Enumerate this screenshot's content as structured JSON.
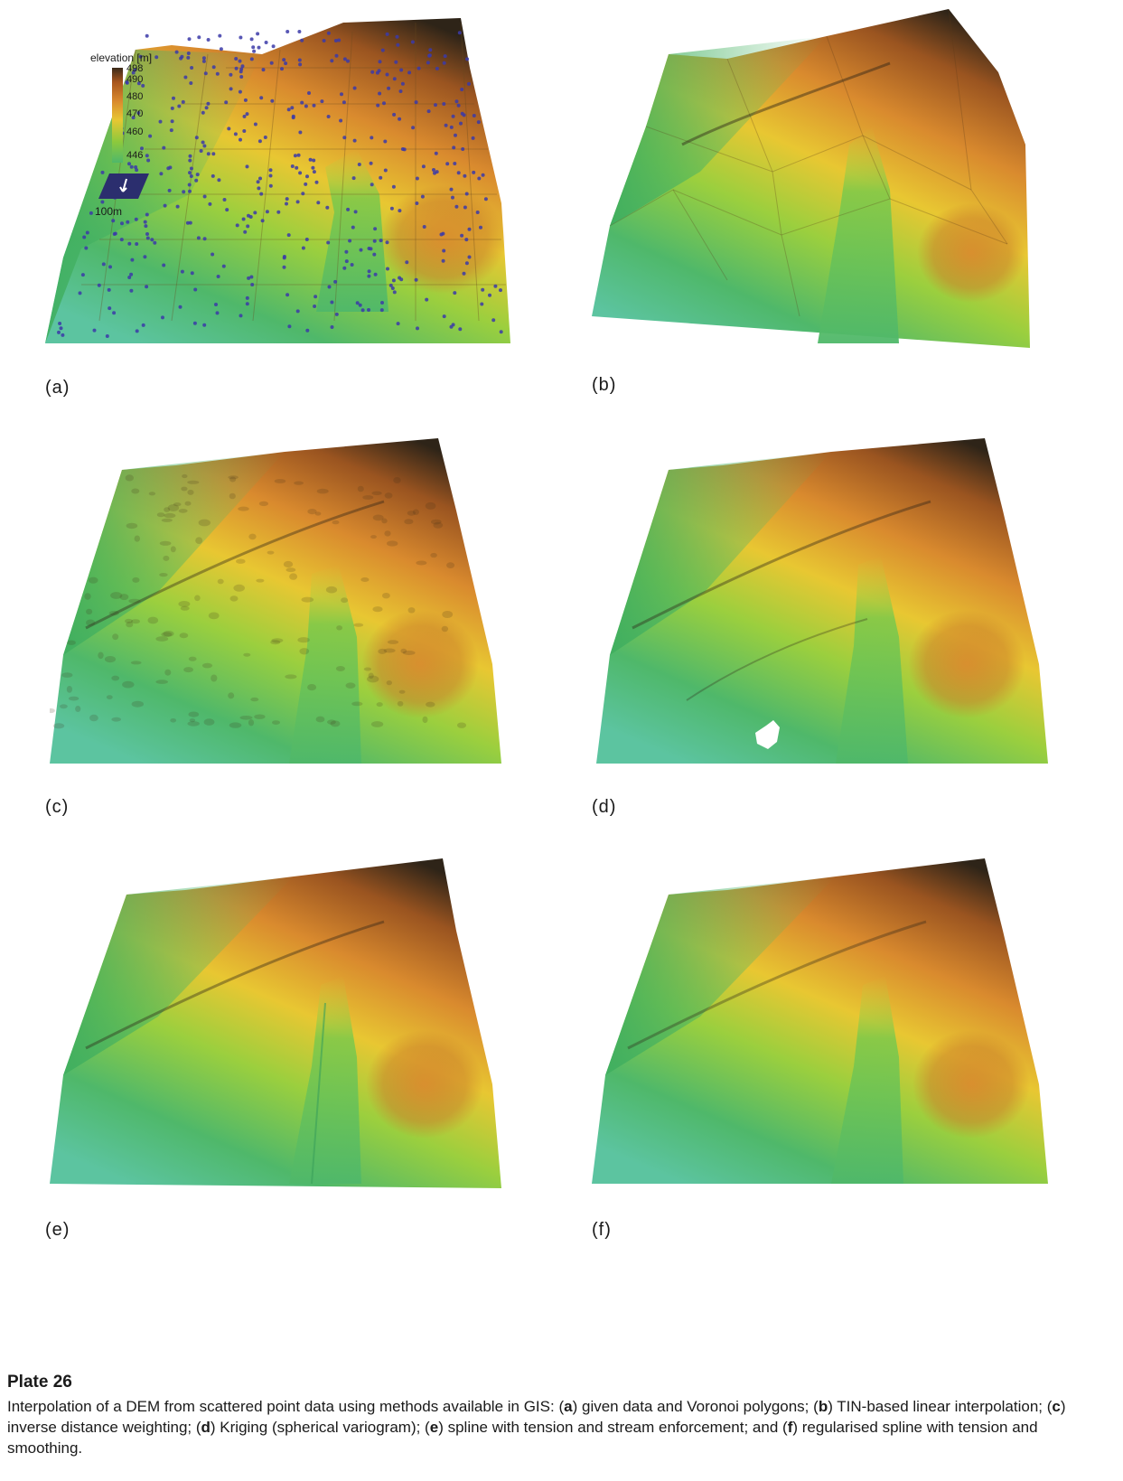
{
  "legend": {
    "title": "elevation [m]",
    "ticks": [
      "498",
      "490",
      "480",
      "470",
      "460",
      "446"
    ]
  },
  "scale_label": "100m",
  "panels": [
    {
      "id": "a",
      "label": "(a)"
    },
    {
      "id": "b",
      "label": "(b)"
    },
    {
      "id": "c",
      "label": "(c)"
    },
    {
      "id": "d",
      "label": "(d)"
    },
    {
      "id": "e",
      "label": "(e)"
    },
    {
      "id": "f",
      "label": "(f)"
    }
  ],
  "caption": {
    "title": "Plate 26",
    "intro": "Interpolation of a DEM from scattered point data using methods available in GIS: ",
    "items": [
      {
        "letter": "a",
        "text": " given data and Voronoi polygons; "
      },
      {
        "letter": "b",
        "text": " TIN-based linear interpolation; "
      },
      {
        "letter": "c",
        "text": " inverse distance weighting; "
      },
      {
        "letter": "d",
        "text": " Kriging (spherical variogram); "
      },
      {
        "letter": "e",
        "text": " spline with tension and stream enforcement; and "
      },
      {
        "letter": "f",
        "text": " regularised spline with tension and smoothing."
      }
    ]
  },
  "colors": {
    "low": "#4fb86a",
    "mid_low": "#8dc93c",
    "mid": "#e8c732",
    "mid_high": "#d9892e",
    "high": "#a8551c",
    "peak": "#3a2a1a",
    "points": "#3b3aa8"
  }
}
